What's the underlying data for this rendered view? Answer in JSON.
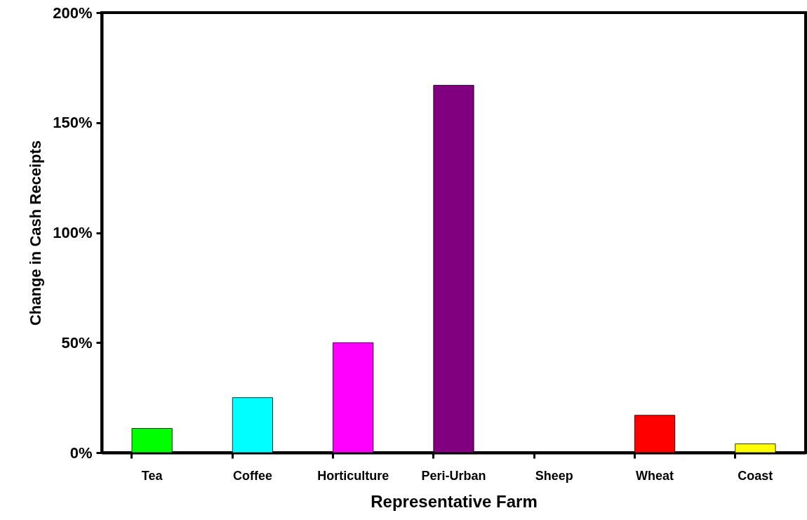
{
  "chart_data": {
    "type": "bar",
    "xlabel": "Representative Farm",
    "ylabel": "Change in Cash Receipts",
    "categories": [
      "Tea",
      "Coffee",
      "Horticulture",
      "Peri-Urban",
      "Sheep",
      "Wheat",
      "Coast"
    ],
    "values": [
      11,
      25,
      50,
      167,
      0,
      17,
      4
    ],
    "colors": [
      "#00ff00",
      "#00ffff",
      "#ff00ff",
      "#800080",
      "#000080",
      "#ff0000",
      "#ffff00"
    ],
    "ylim": [
      0,
      200
    ],
    "yticks": [
      {
        "value": 0,
        "label": "0%"
      },
      {
        "value": 50,
        "label": "50%"
      },
      {
        "value": 100,
        "label": "100%"
      },
      {
        "value": 150,
        "label": "150%"
      },
      {
        "value": 200,
        "label": "200%"
      }
    ],
    "grid": false
  }
}
